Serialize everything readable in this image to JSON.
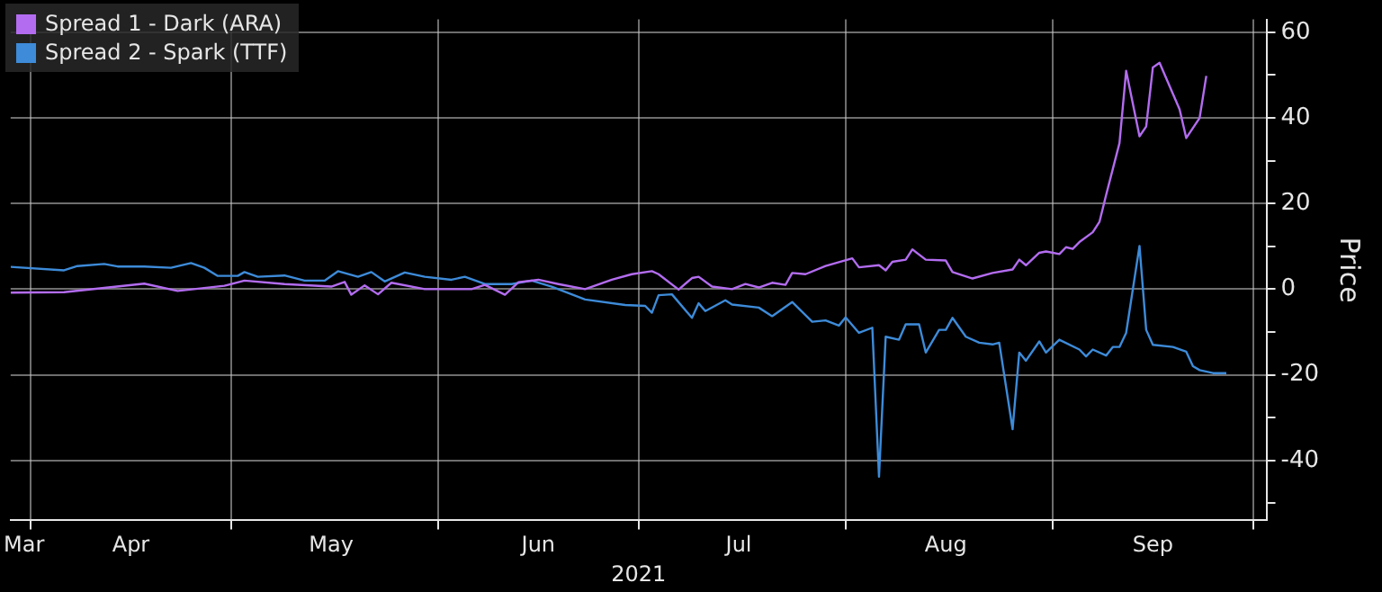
{
  "chart_data": {
    "type": "line",
    "xlabel": "2021",
    "ylabel": "Price",
    "legend": "top left",
    "grid": true,
    "marker": "none",
    "line_style": "solid",
    "xlim": [
      "2021-03-29",
      "2021-10-03"
    ],
    "xticks": [
      {
        "value": "2021-03-31",
        "label": "Mar"
      },
      {
        "value": "2021-04-01",
        "label": null
      },
      {
        "value": "2021-04-16",
        "label": "Apr"
      },
      {
        "value": "2021-05-01",
        "label": null
      },
      {
        "value": "2021-05-16",
        "label": "May"
      },
      {
        "value": "2021-06-01",
        "label": null
      },
      {
        "value": "2021-06-16",
        "label": "Jun"
      },
      {
        "value": "2021-07-01",
        "label": null
      },
      {
        "value": "2021-07-16",
        "label": "Jul"
      },
      {
        "value": "2021-08-01",
        "label": null
      },
      {
        "value": "2021-08-16",
        "label": "Aug"
      },
      {
        "value": "2021-09-01",
        "label": null
      },
      {
        "value": "2021-09-16",
        "label": "Sep"
      },
      {
        "value": "2021-10-01",
        "label": null
      }
    ],
    "ylim": [
      -54,
      63
    ],
    "yticks": [
      {
        "value": -50,
        "label": null
      },
      -40,
      {
        "value": -30,
        "label": null
      },
      -20,
      {
        "value": -10,
        "label": null
      },
      0,
      {
        "value": 10,
        "label": null
      },
      20,
      {
        "value": 30,
        "label": null
      },
      40,
      {
        "value": 50,
        "label": null
      },
      60
    ],
    "series": [
      {
        "name": "Spread 1 - Dark (ARA)",
        "color": "#b36cf0",
        "x": [
          "2021-03-29",
          "2021-04-06",
          "2021-04-18",
          "2021-04-23",
          "2021-04-30",
          "2021-05-03",
          "2021-05-09",
          "2021-05-16",
          "2021-05-18",
          "2021-05-19",
          "2021-05-21",
          "2021-05-23",
          "2021-05-25",
          "2021-05-30",
          "2021-06-06",
          "2021-06-08",
          "2021-06-11",
          "2021-06-13",
          "2021-06-16",
          "2021-06-19",
          "2021-06-23",
          "2021-06-27",
          "2021-06-30",
          "2021-07-03",
          "2021-07-04",
          "2021-07-07",
          "2021-07-09",
          "2021-07-10",
          "2021-07-12",
          "2021-07-15",
          "2021-07-17",
          "2021-07-19",
          "2021-07-21",
          "2021-07-23",
          "2021-07-24",
          "2021-07-26",
          "2021-07-29",
          "2021-08-02",
          "2021-08-03",
          "2021-08-06",
          "2021-08-07",
          "2021-08-08",
          "2021-08-10",
          "2021-08-11",
          "2021-08-13",
          "2021-08-16",
          "2021-08-17",
          "2021-08-20",
          "2021-08-23",
          "2021-08-26",
          "2021-08-27",
          "2021-08-28",
          "2021-08-30",
          "2021-08-31",
          "2021-09-02",
          "2021-09-03",
          "2021-09-04",
          "2021-09-05",
          "2021-09-07",
          "2021-09-08",
          "2021-09-09",
          "2021-09-11",
          "2021-09-12",
          "2021-09-14",
          "2021-09-15",
          "2021-09-16",
          "2021-09-17",
          "2021-09-20",
          "2021-09-21",
          "2021-09-23",
          "2021-09-24"
        ],
        "values": [
          -0.8,
          -0.7,
          1.3,
          -0.4,
          0.8,
          2,
          1.2,
          0.6,
          1.7,
          -1.3,
          0.9,
          -1.2,
          1.5,
          0,
          0,
          1,
          -1.3,
          1.6,
          2.2,
          1.2,
          0,
          2.2,
          3.5,
          4.2,
          3.5,
          -0.1,
          2.6,
          2.9,
          0.6,
          0,
          1.2,
          0.4,
          1.5,
          1,
          3.8,
          3.5,
          5.4,
          7.2,
          5.1,
          5.6,
          4.4,
          6.4,
          6.9,
          9.3,
          6.9,
          6.7,
          4,
          2.5,
          3.8,
          4.6,
          6.9,
          5.6,
          8.5,
          8.8,
          8.2,
          9.8,
          9.4,
          11,
          13.3,
          15.7,
          22,
          34.1,
          51,
          35.7,
          38,
          51.8,
          52.9,
          42,
          35.3,
          40,
          49.8
        ]
      },
      {
        "name": "Spread 2 - Spark (TTF)",
        "color": "#3d8bd9",
        "x": [
          "2021-03-29",
          "2021-04-06",
          "2021-04-08",
          "2021-04-12",
          "2021-04-14",
          "2021-04-18",
          "2021-04-22",
          "2021-04-25",
          "2021-04-27",
          "2021-04-29",
          "2021-05-02",
          "2021-05-03",
          "2021-05-05",
          "2021-05-09",
          "2021-05-12",
          "2021-05-15",
          "2021-05-17",
          "2021-05-20",
          "2021-05-22",
          "2021-05-24",
          "2021-05-27",
          "2021-05-30",
          "2021-06-03",
          "2021-06-05",
          "2021-06-08",
          "2021-06-12",
          "2021-06-15",
          "2021-06-18",
          "2021-06-23",
          "2021-06-29",
          "2021-07-02",
          "2021-07-03",
          "2021-07-04",
          "2021-07-06",
          "2021-07-09",
          "2021-07-10",
          "2021-07-11",
          "2021-07-14",
          "2021-07-15",
          "2021-07-19",
          "2021-07-21",
          "2021-07-24",
          "2021-07-27",
          "2021-07-29",
          "2021-07-31",
          "2021-08-01",
          "2021-08-03",
          "2021-08-05",
          "2021-08-06",
          "2021-08-07",
          "2021-08-09",
          "2021-08-10",
          "2021-08-12",
          "2021-08-13",
          "2021-08-15",
          "2021-08-16",
          "2021-08-17",
          "2021-08-19",
          "2021-08-21",
          "2021-08-23",
          "2021-08-24",
          "2021-08-26",
          "2021-08-27",
          "2021-08-28",
          "2021-08-30",
          "2021-08-31",
          "2021-09-02",
          "2021-09-05",
          "2021-09-06",
          "2021-09-07",
          "2021-09-09",
          "2021-09-10",
          "2021-09-11",
          "2021-09-12",
          "2021-09-14",
          "2021-09-15",
          "2021-09-16",
          "2021-09-19",
          "2021-09-21",
          "2021-09-22",
          "2021-09-23",
          "2021-09-25",
          "2021-09-27"
        ],
        "values": [
          5.2,
          4.4,
          5.4,
          5.9,
          5.3,
          5.3,
          5,
          6.1,
          5,
          3.1,
          3.1,
          4,
          2.9,
          3.2,
          2,
          2,
          4.2,
          2.9,
          4,
          1.8,
          3.9,
          2.9,
          2.2,
          2.9,
          1.2,
          1.2,
          2,
          0.6,
          -2.4,
          -3.7,
          -3.9,
          -5.5,
          -1.4,
          -1.2,
          -6.7,
          -3.3,
          -5.1,
          -2.6,
          -3.6,
          -4.3,
          -6.3,
          -3,
          -7.6,
          -7.3,
          -8.5,
          -6.6,
          -10.2,
          -9,
          -43.8,
          -11.1,
          -11.8,
          -8.2,
          -8.2,
          -14.8,
          -9.5,
          -9.5,
          -6.7,
          -11.1,
          -12.5,
          -12.9,
          -12.5,
          -32.7,
          -14.8,
          -16.7,
          -12.2,
          -14.8,
          -11.8,
          -14.1,
          -15.7,
          -14.1,
          -15.5,
          -13.5,
          -13.5,
          -10.2,
          10.1,
          -9.5,
          -13,
          -13.5,
          -14.6,
          -18,
          -18.9,
          -19.6,
          -19.6
        ]
      }
    ]
  }
}
